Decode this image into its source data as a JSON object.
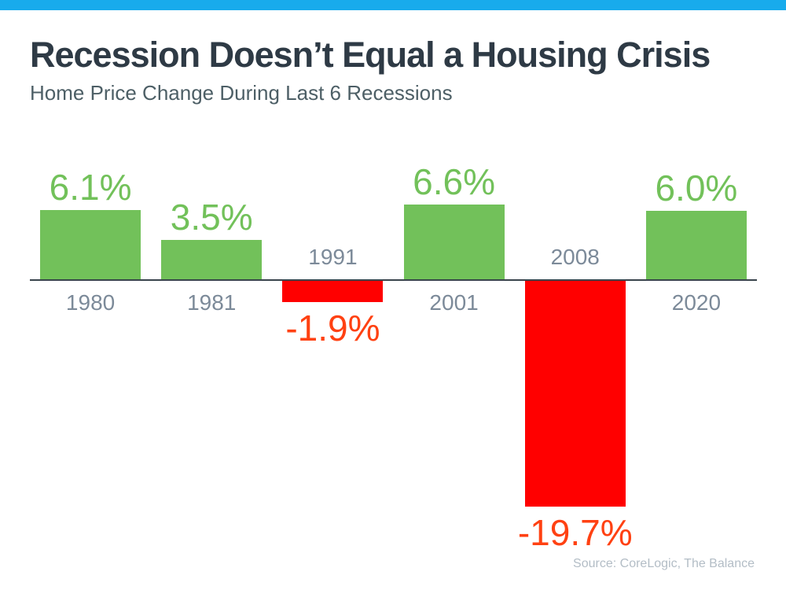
{
  "page": {
    "accent_bar_color": "#18ABEC",
    "background_color": "#FFFFFF"
  },
  "header": {
    "title": "Recession Doesn’t Equal a Housing Crisis",
    "subtitle": "Home Price Change During Last 6 Recessions"
  },
  "chart_data": {
    "type": "bar",
    "title": "Recession Doesn’t Equal a Housing Crisis",
    "subtitle": "Home Price Change During Last 6 Recessions",
    "categories": [
      "1980",
      "1981",
      "1991",
      "2001",
      "2008",
      "2020"
    ],
    "values": [
      6.1,
      3.5,
      -1.9,
      6.6,
      -19.7,
      6.0
    ],
    "value_labels": [
      "6.1%",
      "3.5%",
      "-1.9%",
      "6.6%",
      "-19.7%",
      "6.0%"
    ],
    "xlabel": "",
    "ylabel": "",
    "ylim": [
      -20.5,
      8
    ],
    "grid": false,
    "legend": false,
    "baseline": 0,
    "positive_bar_color": "#72C15A",
    "negative_bar_color": "#FF0000",
    "positive_label_color": "#72C15A",
    "negative_label_color": "#FF4112",
    "category_label_color": "#7C8A99",
    "axis_color": "#39444C"
  },
  "footer": {
    "source": "Source: CoreLogic, The Balance",
    "source_color": "#B3BDC6"
  }
}
